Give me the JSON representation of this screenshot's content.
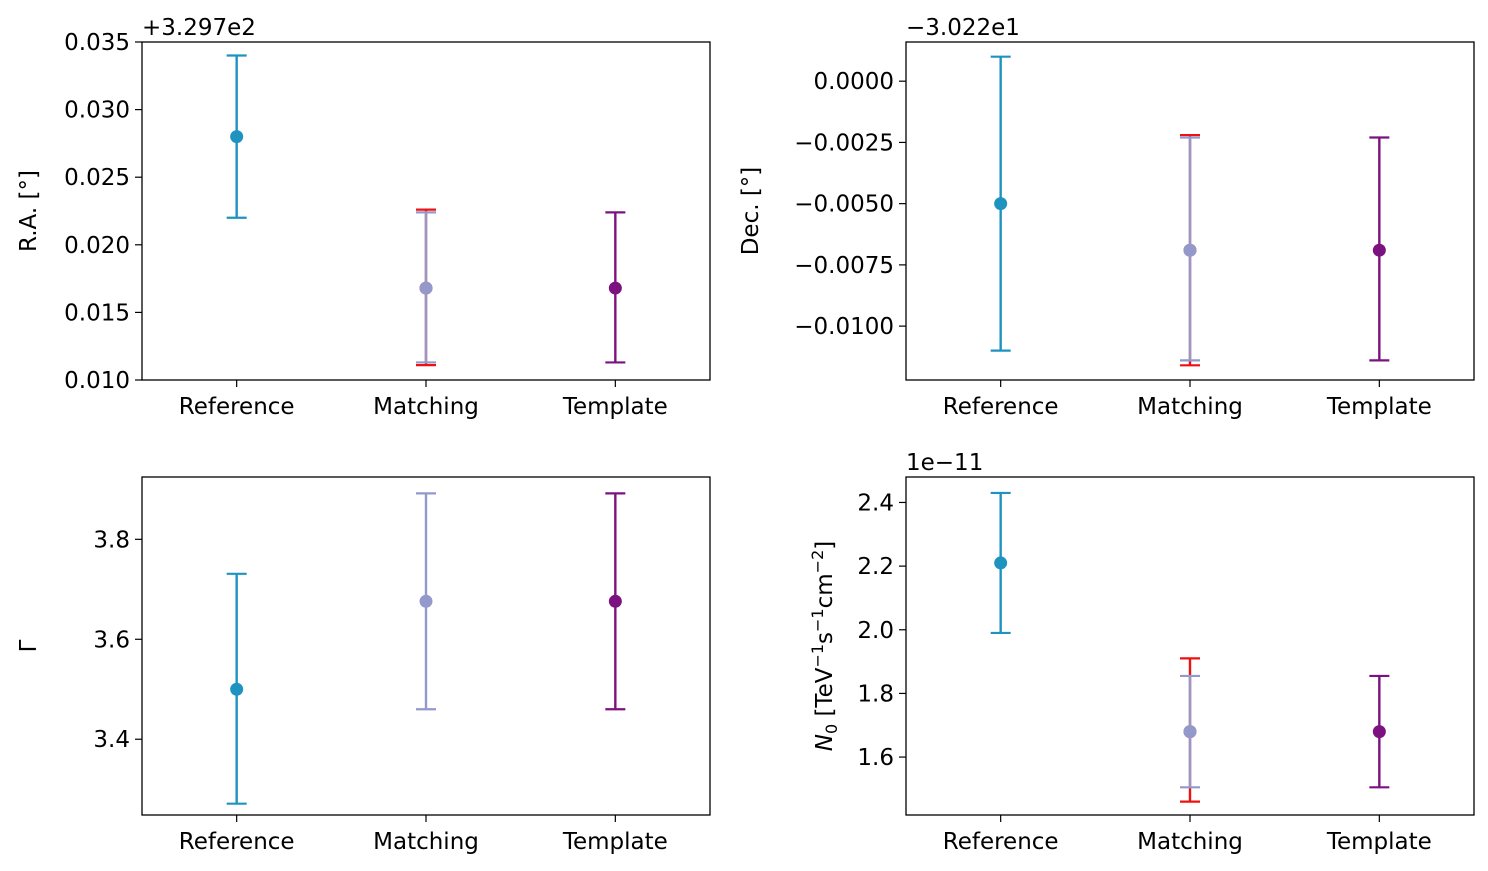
{
  "colors": {
    "reference": "#1f93c0",
    "matching_outer": "#ee1111",
    "matching": "#9499cc",
    "template": "#7b1280"
  },
  "chart_data": [
    {
      "type": "errorbar",
      "ylabel": "R.A. [°]",
      "offset_label": "+3.297e2",
      "ylim": [
        0.01,
        0.035
      ],
      "yticks": [
        "0.010",
        "0.015",
        "0.020",
        "0.025",
        "0.030",
        "0.035"
      ],
      "ytick_values": [
        0.01,
        0.015,
        0.02,
        0.025,
        0.03,
        0.035
      ],
      "categories": [
        "Reference",
        "Matching",
        "Template"
      ],
      "points": [
        {
          "category": "Reference",
          "value": 0.028,
          "low": 0.022,
          "high": 0.034,
          "color": "reference"
        },
        {
          "category": "Matching",
          "value": 0.0168,
          "low": 0.0111,
          "high": 0.0226,
          "color": "matching_outer"
        },
        {
          "category": "Matching",
          "value": 0.0168,
          "low": 0.0113,
          "high": 0.0224,
          "color": "matching"
        },
        {
          "category": "Template",
          "value": 0.0168,
          "low": 0.0113,
          "high": 0.0224,
          "color": "template"
        }
      ]
    },
    {
      "type": "errorbar",
      "ylabel": "Dec. [°]",
      "offset_label": "−3.022e1",
      "ylim": [
        -0.0122,
        0.0016
      ],
      "yticks": [
        "0.0000",
        "−0.0025",
        "−0.0050",
        "−0.0075",
        "−0.0100"
      ],
      "ytick_values": [
        0.0,
        -0.0025,
        -0.005,
        -0.0075,
        -0.01
      ],
      "categories": [
        "Reference",
        "Matching",
        "Template"
      ],
      "points": [
        {
          "category": "Reference",
          "value": -0.005,
          "low": -0.011,
          "high": 0.001,
          "color": "reference"
        },
        {
          "category": "Matching",
          "value": -0.0069,
          "low": -0.0116,
          "high": -0.0022,
          "color": "matching_outer"
        },
        {
          "category": "Matching",
          "value": -0.0069,
          "low": -0.0114,
          "high": -0.0023,
          "color": "matching"
        },
        {
          "category": "Template",
          "value": -0.0069,
          "low": -0.0114,
          "high": -0.0023,
          "color": "template"
        }
      ]
    },
    {
      "type": "errorbar",
      "ylabel": "Γ",
      "offset_label": "",
      "ylim": [
        3.2484,
        3.9247
      ],
      "yticks": [
        "3.4",
        "3.6",
        "3.8"
      ],
      "ytick_values": [
        3.4,
        3.6,
        3.8
      ],
      "categories": [
        "Reference",
        "Matching",
        "Template"
      ],
      "points": [
        {
          "category": "Reference",
          "value": 3.5,
          "low": 3.271,
          "high": 3.731,
          "color": "reference"
        },
        {
          "category": "Matching",
          "value": 3.676,
          "low": 3.46,
          "high": 3.892,
          "color": "matching"
        },
        {
          "category": "Template",
          "value": 3.676,
          "low": 3.46,
          "high": 3.892,
          "color": "template"
        }
      ]
    },
    {
      "type": "errorbar",
      "ylabel_main": "N",
      "ylabel_sub": "0",
      "ylabel_unit_parts": [
        " [TeV",
        "−1",
        "s",
        "−1",
        "cm",
        "−2",
        "]"
      ],
      "offset_label": "1e−11",
      "ylim": [
        1.418,
        2.48
      ],
      "yticks": [
        "1.6",
        "1.8",
        "2.0",
        "2.2",
        "2.4"
      ],
      "ytick_values": [
        1.6,
        1.8,
        2.0,
        2.2,
        2.4
      ],
      "categories": [
        "Reference",
        "Matching",
        "Template"
      ],
      "points": [
        {
          "category": "Reference",
          "value": 2.21,
          "low": 1.99,
          "high": 2.43,
          "color": "reference"
        },
        {
          "category": "Matching",
          "value": 1.68,
          "low": 1.46,
          "high": 1.91,
          "color": "matching_outer"
        },
        {
          "category": "Matching",
          "value": 1.68,
          "low": 1.505,
          "high": 1.855,
          "color": "matching"
        },
        {
          "category": "Template",
          "value": 1.68,
          "low": 1.505,
          "high": 1.855,
          "color": "template"
        }
      ]
    }
  ]
}
